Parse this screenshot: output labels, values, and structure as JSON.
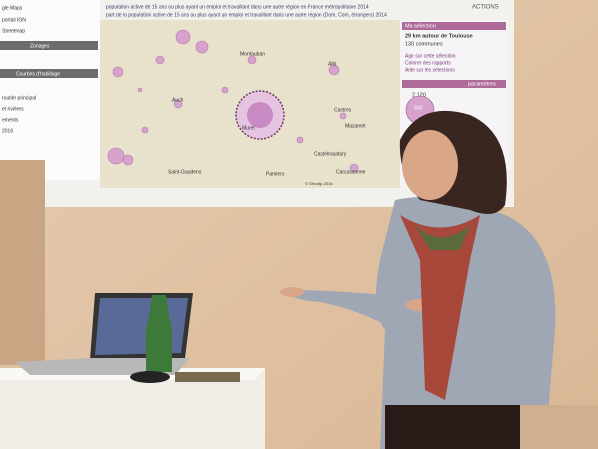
{
  "screen": {
    "left_panel": [
      "gle Maps",
      "portail IGN",
      "Streetmap",
      "Zonages",
      "Courbes d'habillage",
      "routier principal",
      "et rivières",
      "ements",
      "2016"
    ],
    "legend": [
      "population active de 15 ans ou plus ayant un emploi et travaillant dans une autre région en France métropolitaine 2014",
      "part de la population active de 15 ans ou plus ayant un emploi et travaillant dans une autre région (Dom, Com, étrangers) 2014"
    ],
    "actions": "ACTIONS",
    "map_labels": [
      "Montauban",
      "Albi",
      "Auch",
      "Castres",
      "Mazamet",
      "Muret",
      "Castelnaudary",
      "Carcassonne",
      "Saint-Gaudens",
      "Pamiers"
    ],
    "copyright": "© Géoclip 2016",
    "selection_panel": {
      "title": "Ma sélection",
      "area": "29 km autour de Toulouse",
      "count": "130 communes",
      "links": [
        "Agir sur cette sélection",
        "Colorer des rapports",
        "Aide sur les sélections"
      ],
      "params": "paramètres",
      "values": [
        "2 120",
        "830"
      ]
    }
  }
}
